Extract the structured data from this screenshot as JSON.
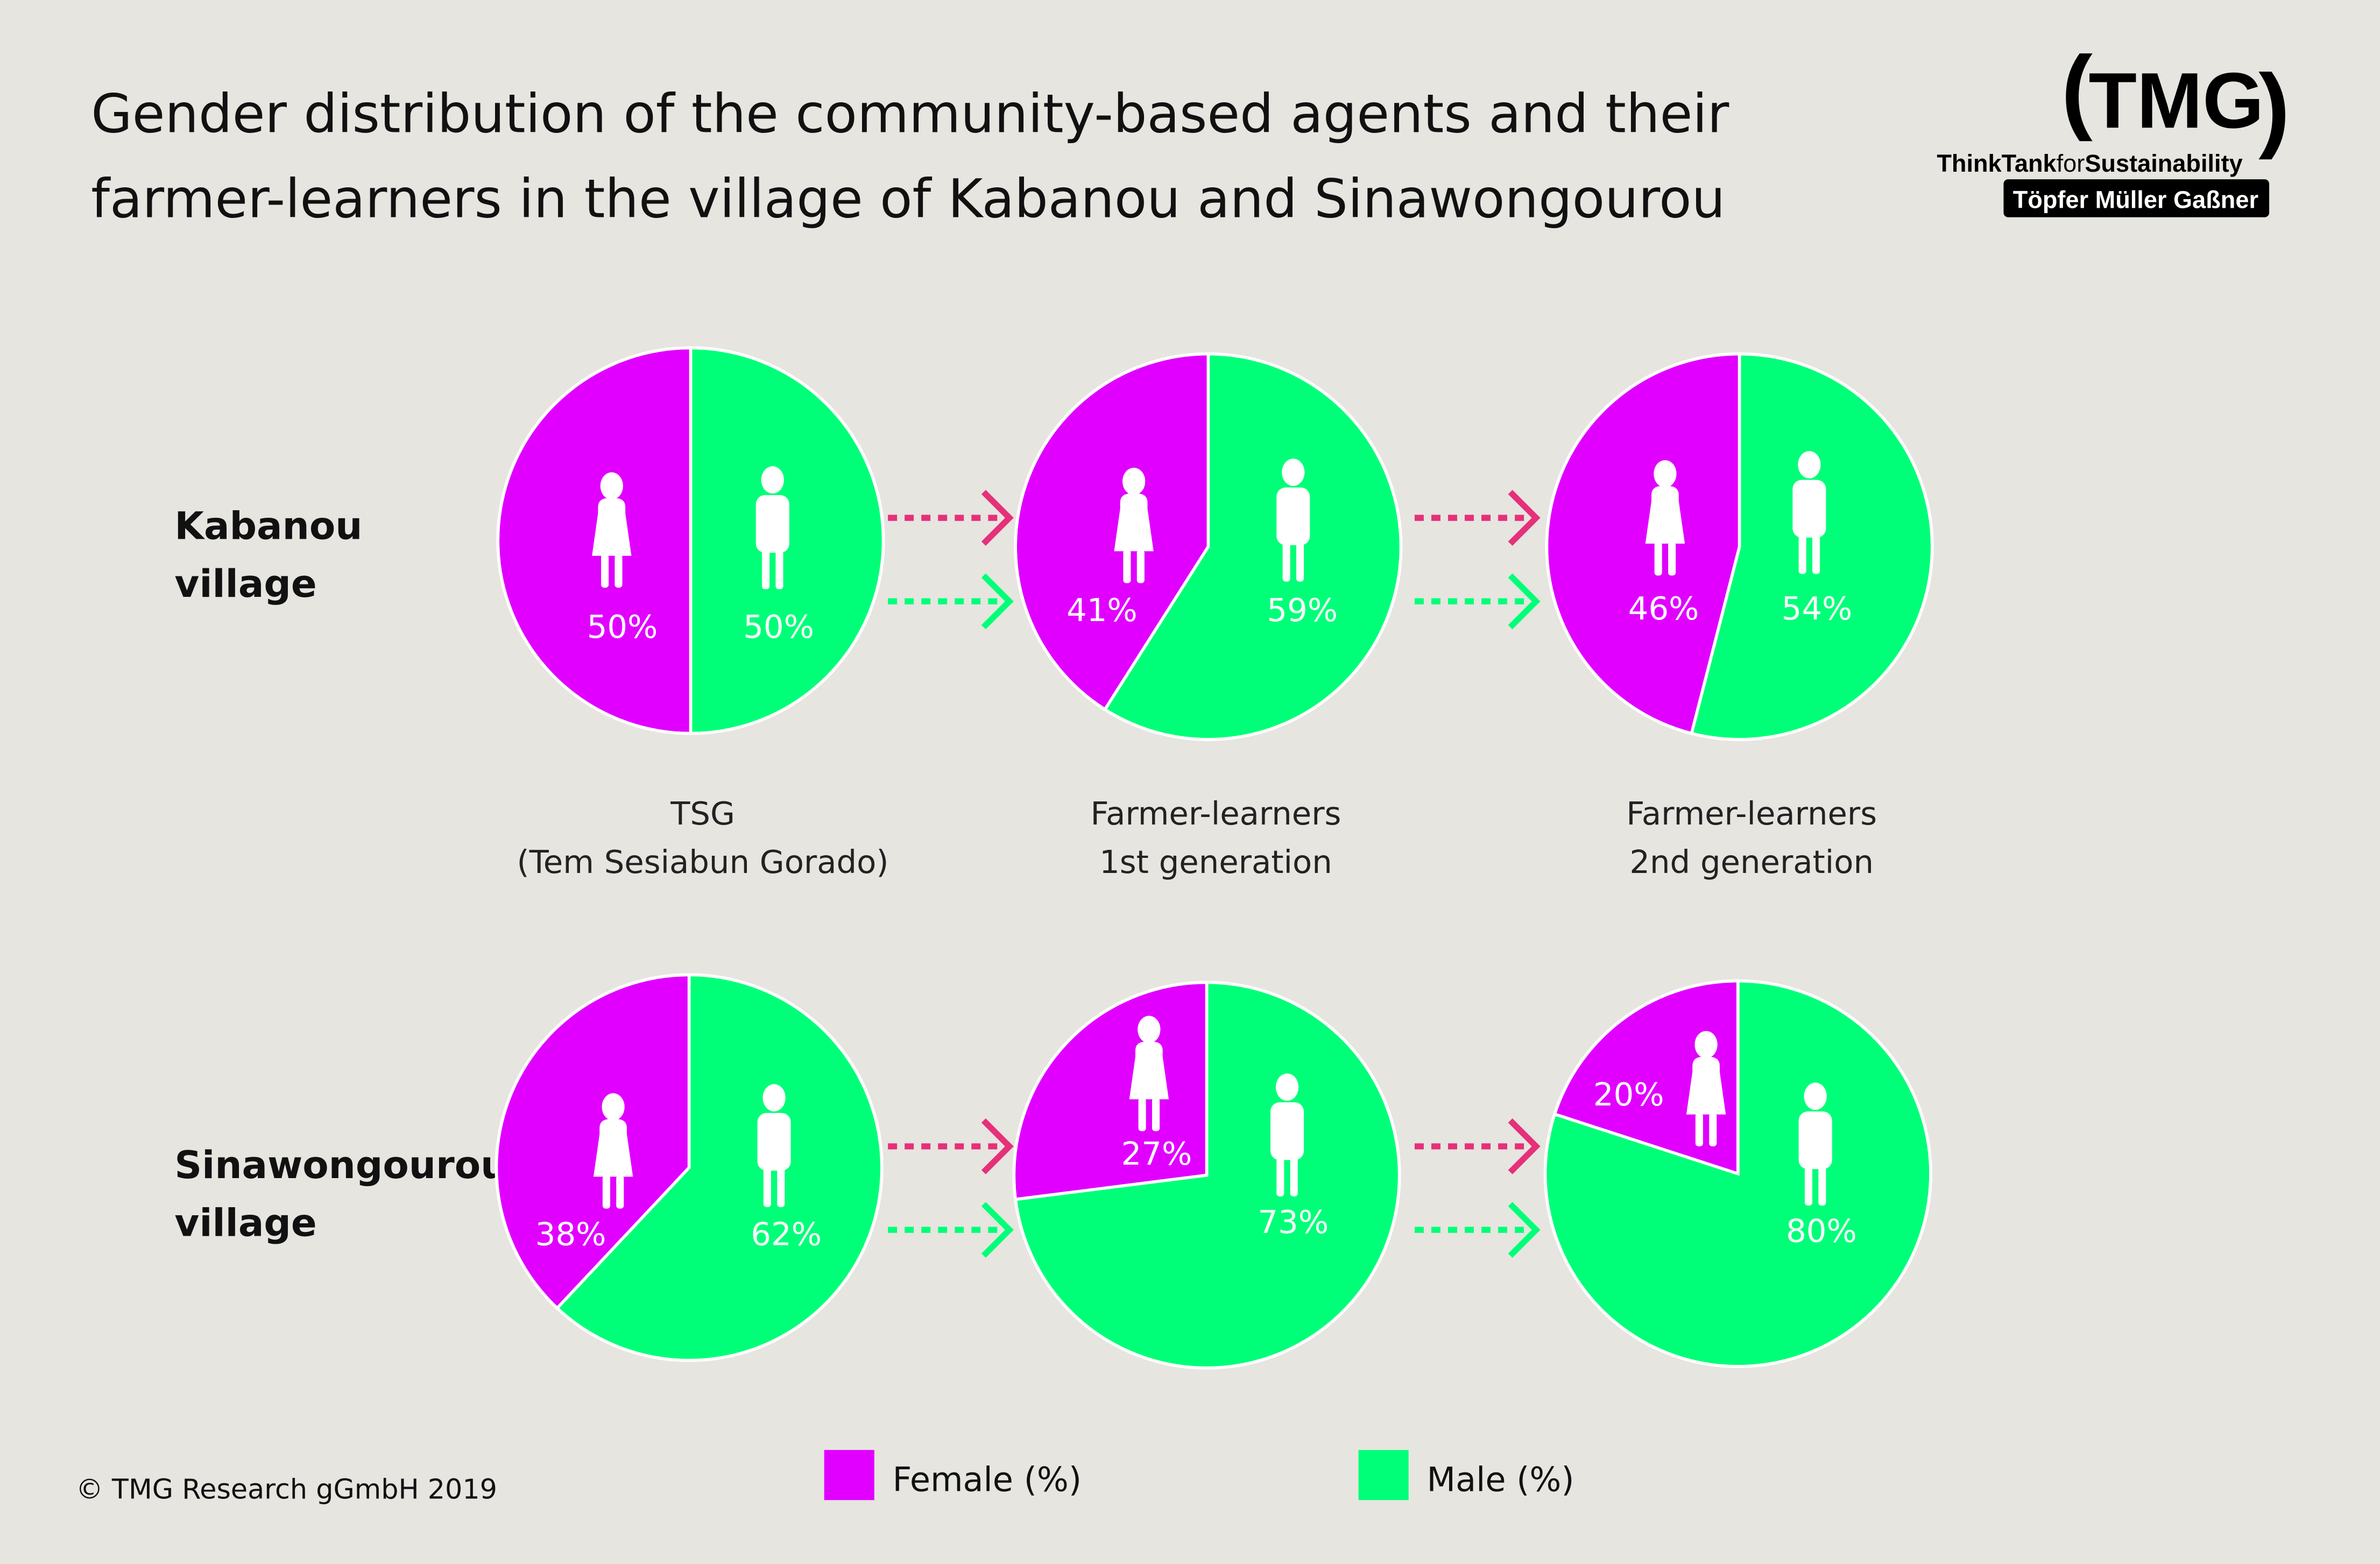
{
  "chart_data": {
    "type": "pie",
    "title": "Gender distribution of the community-based agents and their farmer-learners in the village of Kabanou and Sinawongourou",
    "title_lines": [
      "Gender distribution of the community-based agents and their",
      "farmer-learners in the village of Kabanou and Sinawongourou"
    ],
    "columns": [
      {
        "lines": [
          "TSG",
          "(Tem Sesiabun Gorado)"
        ]
      },
      {
        "lines": [
          "Farmer-learners",
          "1st generation"
        ]
      },
      {
        "lines": [
          "Farmer-learners",
          "2nd generation"
        ]
      }
    ],
    "rows": [
      {
        "lines": [
          "Kabanou",
          "village"
        ],
        "pies": [
          {
            "female": 50,
            "male": 50,
            "female_label": "50%",
            "male_label": "50%"
          },
          {
            "female": 41,
            "male": 59,
            "female_label": "41%",
            "male_label": "59%"
          },
          {
            "female": 46,
            "male": 54,
            "female_label": "46%",
            "male_label": "54%"
          }
        ]
      },
      {
        "lines": [
          "Sinawongourou",
          "village"
        ],
        "pies": [
          {
            "female": 38,
            "male": 62,
            "female_label": "38%",
            "male_label": "62%"
          },
          {
            "female": 27,
            "male": 73,
            "female_label": "27%",
            "male_label": "73%"
          },
          {
            "female": 20,
            "male": 80,
            "female_label": "20%",
            "male_label": "80%"
          }
        ]
      }
    ],
    "legend": [
      {
        "label": "Female (%)",
        "color": "#e100ff"
      },
      {
        "label": "Male (%)",
        "color": "#00ff78"
      }
    ],
    "legend_placement": "bottom",
    "arrow_colors": {
      "female": "#e5307a",
      "male": "#00ff78"
    }
  },
  "footer": {
    "copyright": "© TMG Research gGmbH 2019"
  },
  "logo": {
    "main": "(TMG)",
    "tagline_a": "ThinkTank",
    "tagline_b": "for",
    "tagline_c": "Sustainability",
    "box": "Töpfer Müller Gaßner"
  },
  "colors": {
    "background": "#e6e5e0"
  }
}
